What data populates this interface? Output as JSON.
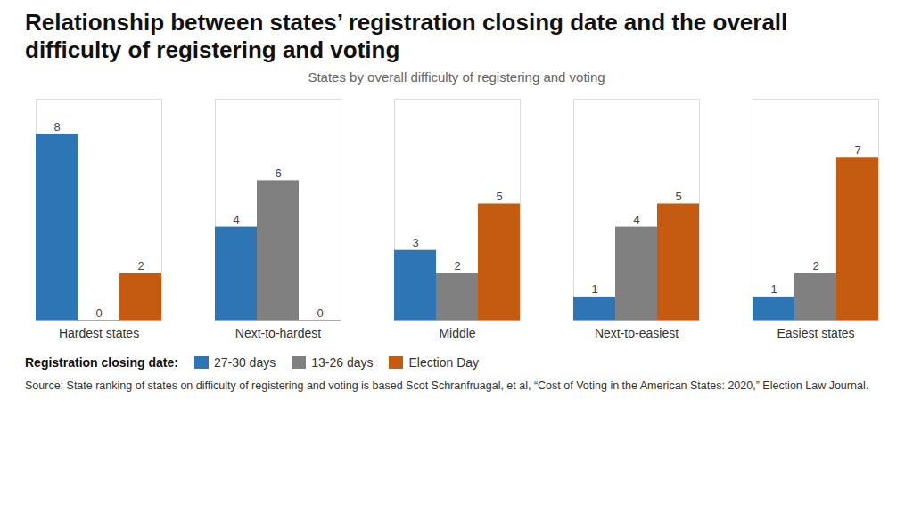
{
  "chart_data": {
    "type": "bar",
    "title": "Relationship between states’ registration closing date and the overall difficulty of registering and voting",
    "subtitle": "States by overall difficulty of registering and voting",
    "categories": [
      "Hardest states",
      "Next-to-hardest",
      "Middle",
      "Next-to-easiest",
      "Easiest states"
    ],
    "series": [
      {
        "name": "27-30 days",
        "color": "#2E75B6",
        "values": [
          8,
          4,
          3,
          1,
          1
        ]
      },
      {
        "name": "13-26 days",
        "color": "#808080",
        "values": [
          0,
          6,
          2,
          4,
          2
        ]
      },
      {
        "name": "Election Day",
        "color": "#C55A11",
        "values": [
          2,
          0,
          5,
          5,
          7
        ]
      }
    ],
    "legend_title": "Registration closing date:",
    "source": "Source: State ranking of states on difficulty of registering and voting is based Scot Schranfruagal, et al, “Cost of Voting in the American States: 2020,” Election Law Journal.",
    "ylim": [
      0,
      9.5
    ],
    "grid": false,
    "legend": "bottom",
    "data_labels": true,
    "tick_labels": "x"
  }
}
